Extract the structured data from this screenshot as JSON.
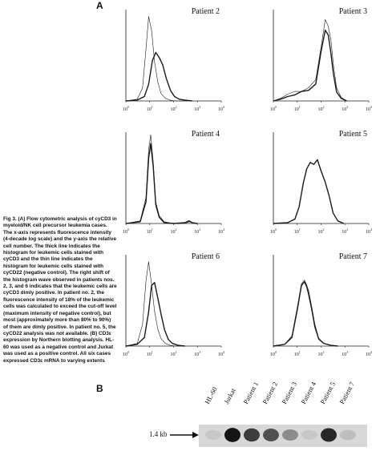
{
  "panels": {
    "a": "A",
    "b": "B"
  },
  "caption": "Fig 3. (A) Flow cytometric analysis of cyCD3 in myeloid/NK cell precursor leukemia cases. The x-axis represents fluorescence intensity (4-decade log scale) and the y-axis the relative cell number. The thick line indicates the histogram for leukemic cells stained with cyCD3 and the thin line indicates the histogram for leukemic cells stained with cyCD22 (negative control). The right shift of the histogram wave observed in patients nos. 2, 3, and 6 indicates that the leukemic cells are cyCD3 dimly positive. In patient no. 2, the fluorescence intensity of 18% of the leukemic cells was calculated to exceed the cut-off level (maximum intensity of negative control), but most (approximately more than 80% to 90%) of them are dimly positive. In patient no. 5, the cyCD22 analysis was not available. (B) CD3ε expression by Northern blotting analysis. HL-60 was used as a negative control and Jurkat was used as a positive control. All six cases expressed CD3ε mRNA to varying extents",
  "chart_data": [
    {
      "type": "line",
      "title": "Patient 2",
      "x_scale": "log",
      "x_ticks": [
        "10",
        "10",
        "10",
        "10",
        "10"
      ],
      "x_tick_exponents": [
        "0",
        "1",
        "2",
        "3",
        "4"
      ],
      "xlim": [
        1,
        10000
      ],
      "series": [
        {
          "x": [
            1,
            3,
            5,
            7,
            9,
            12,
            16,
            22,
            30,
            45,
            70,
            110,
            200,
            400
          ],
          "values": [
            0,
            2,
            15,
            60,
            95,
            80,
            45,
            20,
            8,
            3,
            1,
            0,
            0,
            0
          ],
          "style": "thin"
        },
        {
          "x": [
            1,
            3,
            6,
            9,
            13,
            18,
            25,
            35,
            50,
            75,
            110,
            170,
            300,
            600
          ],
          "values": [
            0,
            1,
            5,
            20,
            45,
            55,
            50,
            40,
            25,
            12,
            5,
            2,
            1,
            0
          ],
          "style": "thick"
        }
      ]
    },
    {
      "type": "line",
      "title": "Patient 3",
      "x_scale": "log",
      "x_ticks": [
        "10",
        "10",
        "10",
        "10",
        "10"
      ],
      "x_tick_exponents": [
        "0",
        "1",
        "2",
        "3",
        "4"
      ],
      "xlim": [
        1,
        10000
      ],
      "series": [
        {
          "x": [
            1,
            2,
            4,
            8,
            15,
            30,
            60,
            100,
            150,
            200,
            260,
            330,
            450,
            700,
            1200
          ],
          "values": [
            0,
            3,
            8,
            12,
            10,
            15,
            25,
            60,
            92,
            85,
            70,
            40,
            15,
            4,
            0
          ],
          "style": "thin"
        },
        {
          "x": [
            1,
            2,
            4,
            8,
            15,
            30,
            60,
            100,
            150,
            200,
            260,
            330,
            450,
            700,
            1200
          ],
          "values": [
            0,
            2,
            5,
            8,
            10,
            12,
            20,
            55,
            80,
            75,
            55,
            30,
            10,
            3,
            0
          ],
          "style": "thick"
        }
      ]
    },
    {
      "type": "line",
      "title": "Patient 4",
      "x_scale": "log",
      "x_ticks": [
        "10",
        "10",
        "10",
        "10",
        "10"
      ],
      "x_tick_exponents": [
        "0",
        "1",
        "2",
        "3",
        "4"
      ],
      "xlim": [
        1,
        10000
      ],
      "series": [
        {
          "x": [
            1,
            4,
            7,
            9,
            11,
            14,
            18,
            25,
            40,
            100,
            300,
            450,
            600,
            1000
          ],
          "values": [
            0,
            3,
            30,
            85,
            100,
            70,
            25,
            8,
            2,
            0,
            0,
            2,
            1,
            0
          ],
          "style": "thin"
        },
        {
          "x": [
            1,
            4,
            7,
            9,
            11,
            14,
            18,
            25,
            40,
            100,
            300,
            450,
            600,
            1000
          ],
          "values": [
            0,
            2,
            25,
            75,
            90,
            65,
            22,
            6,
            1,
            0,
            1,
            3,
            1,
            0
          ],
          "style": "thick"
        }
      ]
    },
    {
      "type": "line",
      "title": "Patient 5",
      "x_scale": "log",
      "x_ticks": [
        "10",
        "10",
        "10",
        "10",
        "10"
      ],
      "x_tick_exponents": [
        "0",
        "1",
        "2",
        "3",
        "4"
      ],
      "xlim": [
        1,
        10000
      ],
      "series": [
        {
          "x": [
            1,
            4,
            8,
            12,
            18,
            25,
            35,
            50,
            70,
            100,
            150,
            220,
            320,
            500,
            900
          ],
          "values": [
            0,
            1,
            5,
            20,
            45,
            62,
            70,
            66,
            72,
            60,
            48,
            30,
            12,
            3,
            0
          ],
          "style": "thick"
        }
      ]
    },
    {
      "type": "line",
      "title": "Patient 6",
      "x_scale": "log",
      "x_ticks": [
        "10",
        "10",
        "10",
        "10",
        "10"
      ],
      "x_tick_exponents": [
        "0",
        "1",
        "2",
        "3",
        "4"
      ],
      "xlim": [
        1,
        10000
      ],
      "series": [
        {
          "x": [
            1,
            3,
            5,
            7,
            9,
            12,
            16,
            22,
            30,
            45,
            70,
            120,
            250
          ],
          "values": [
            0,
            3,
            25,
            75,
            95,
            70,
            40,
            18,
            8,
            3,
            1,
            0,
            0
          ],
          "style": "thin"
        },
        {
          "x": [
            1,
            3,
            6,
            9,
            12,
            16,
            22,
            30,
            42,
            60,
            90,
            150,
            300
          ],
          "values": [
            0,
            2,
            10,
            40,
            68,
            72,
            55,
            35,
            18,
            8,
            3,
            1,
            0
          ],
          "style": "thick"
        }
      ]
    },
    {
      "type": "line",
      "title": "Patient 7",
      "x_scale": "log",
      "x_ticks": [
        "10",
        "10",
        "10",
        "10",
        "10"
      ],
      "x_tick_exponents": [
        "0",
        "1",
        "2",
        "3",
        "4"
      ],
      "xlim": [
        1,
        10000
      ],
      "series": [
        {
          "x": [
            1,
            3,
            6,
            10,
            15,
            20,
            25,
            30,
            40,
            55,
            80,
            130,
            250,
            500
          ],
          "values": [
            0,
            2,
            12,
            45,
            70,
            75,
            70,
            62,
            45,
            25,
            10,
            3,
            1,
            0
          ],
          "style": "thin"
        },
        {
          "x": [
            1,
            3,
            6,
            10,
            15,
            20,
            25,
            30,
            40,
            55,
            80,
            130,
            250,
            500
          ],
          "values": [
            0,
            2,
            10,
            42,
            68,
            73,
            68,
            58,
            42,
            22,
            9,
            3,
            1,
            0
          ],
          "style": "thick"
        }
      ]
    }
  ],
  "blot": {
    "lanes": [
      "HL-60",
      "Jurkat",
      "Patient 1",
      "Patient 2",
      "Patient 3",
      "Patient 4",
      "Patient 5",
      "Patient 7"
    ],
    "band_intensity": [
      0.05,
      0.95,
      0.75,
      0.65,
      0.35,
      0.05,
      0.85,
      0.1
    ],
    "size_marker": "1.4 kb"
  }
}
